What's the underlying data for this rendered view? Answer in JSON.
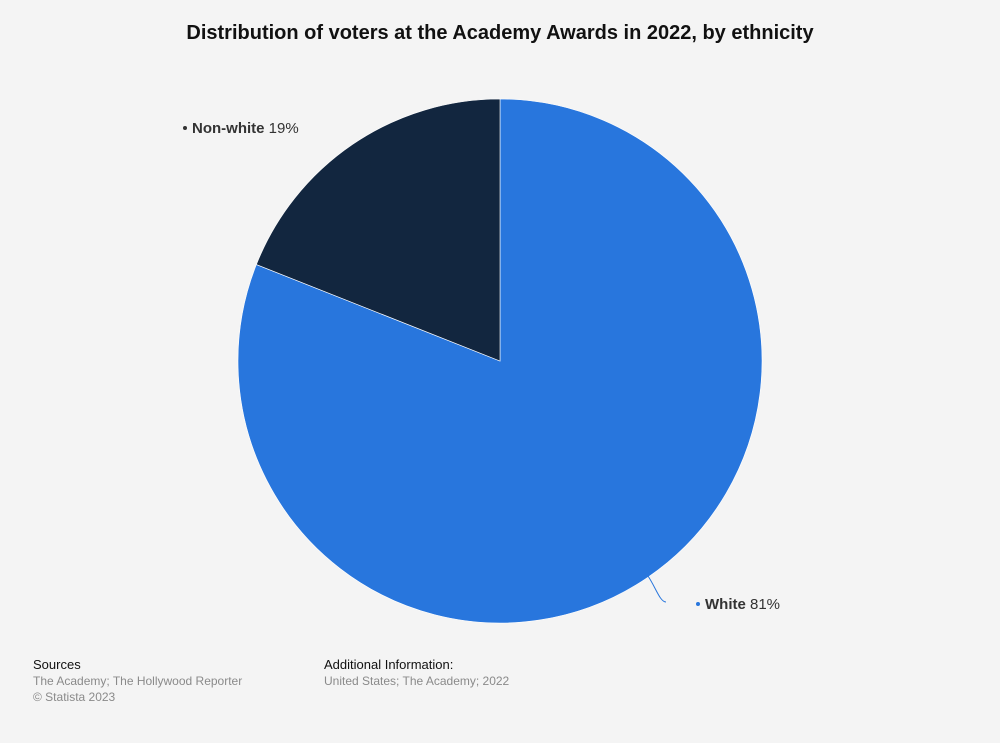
{
  "chart_data": {
    "type": "pie",
    "title": "Distribution of voters at the Academy Awards in 2022, by ethnicity",
    "slices": [
      {
        "label": "White",
        "value": 81,
        "value_label": "81%",
        "color": "#2876dd"
      },
      {
        "label": "Non-white",
        "value": 19,
        "value_label": "19%",
        "color": "#12263f"
      }
    ],
    "legend": "none",
    "data_labels": "outside-with-connectors"
  },
  "footer": {
    "sources_heading": "Sources",
    "sources_lines": [
      "The Academy; The Hollywood Reporter",
      "© Statista 2023"
    ],
    "info_heading": "Additional Information:",
    "info_lines": [
      "United States; The Academy; 2022"
    ]
  }
}
